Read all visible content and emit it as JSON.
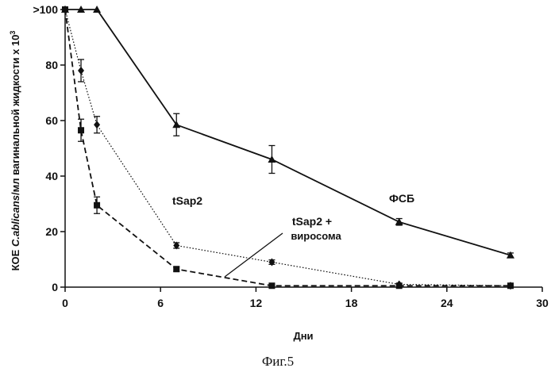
{
  "chart_data": {
    "type": "line",
    "title": "",
    "xlabel": "Дни",
    "ylabel_prefix": "КОЕ ",
    "ylabel_italic": "C.ablicans",
    "ylabel_suffix": "/мл вагинальной жидкости  x 10",
    "ylabel_exponent": "3",
    "xlim": [
      0,
      30
    ],
    "ylim": [
      0,
      100
    ],
    "x_ticks": [
      "0",
      "6",
      "12",
      "18",
      "24",
      "30"
    ],
    "y_ticks": [
      "0",
      "20",
      "40",
      "60",
      "80"
    ],
    "y_top_tick": ">100",
    "grid": false,
    "legend": "none",
    "series": [
      {
        "name": "ФСБ",
        "marker": "triangle",
        "line_style": "solid",
        "x": [
          0,
          1,
          2,
          7,
          13,
          21,
          28
        ],
        "y": [
          100,
          100,
          100,
          58.5,
          46,
          23.5,
          11.5
        ],
        "err": [
          0,
          0,
          0,
          4,
          5,
          1.2,
          0.8
        ]
      },
      {
        "name": "tSap2",
        "marker": "diamond",
        "line_style": "dotted",
        "x": [
          0,
          1,
          2,
          7,
          13,
          21,
          28
        ],
        "y": [
          100,
          78,
          58.5,
          15,
          9,
          1,
          0.5
        ],
        "err": [
          0,
          4,
          3,
          1,
          0.8,
          0.3,
          0.2
        ]
      },
      {
        "name": "tSap2 + виросома",
        "marker": "square",
        "line_style": "dashed",
        "x": [
          0,
          1,
          2,
          7,
          13,
          21,
          28
        ],
        "y": [
          100,
          56.5,
          29.5,
          6.5,
          0.5,
          0.5,
          0.5
        ],
        "err": [
          0,
          4,
          3,
          0.8,
          0.2,
          0.2,
          0.2
        ]
      }
    ],
    "annotations": {
      "label_fsb": "ФСБ",
      "label_tsap2": "tSap2",
      "label_tsap2_vir_line1": "tSap2 +",
      "label_tsap2_vir_line2": "виросома"
    }
  },
  "caption": "Фиг.5"
}
